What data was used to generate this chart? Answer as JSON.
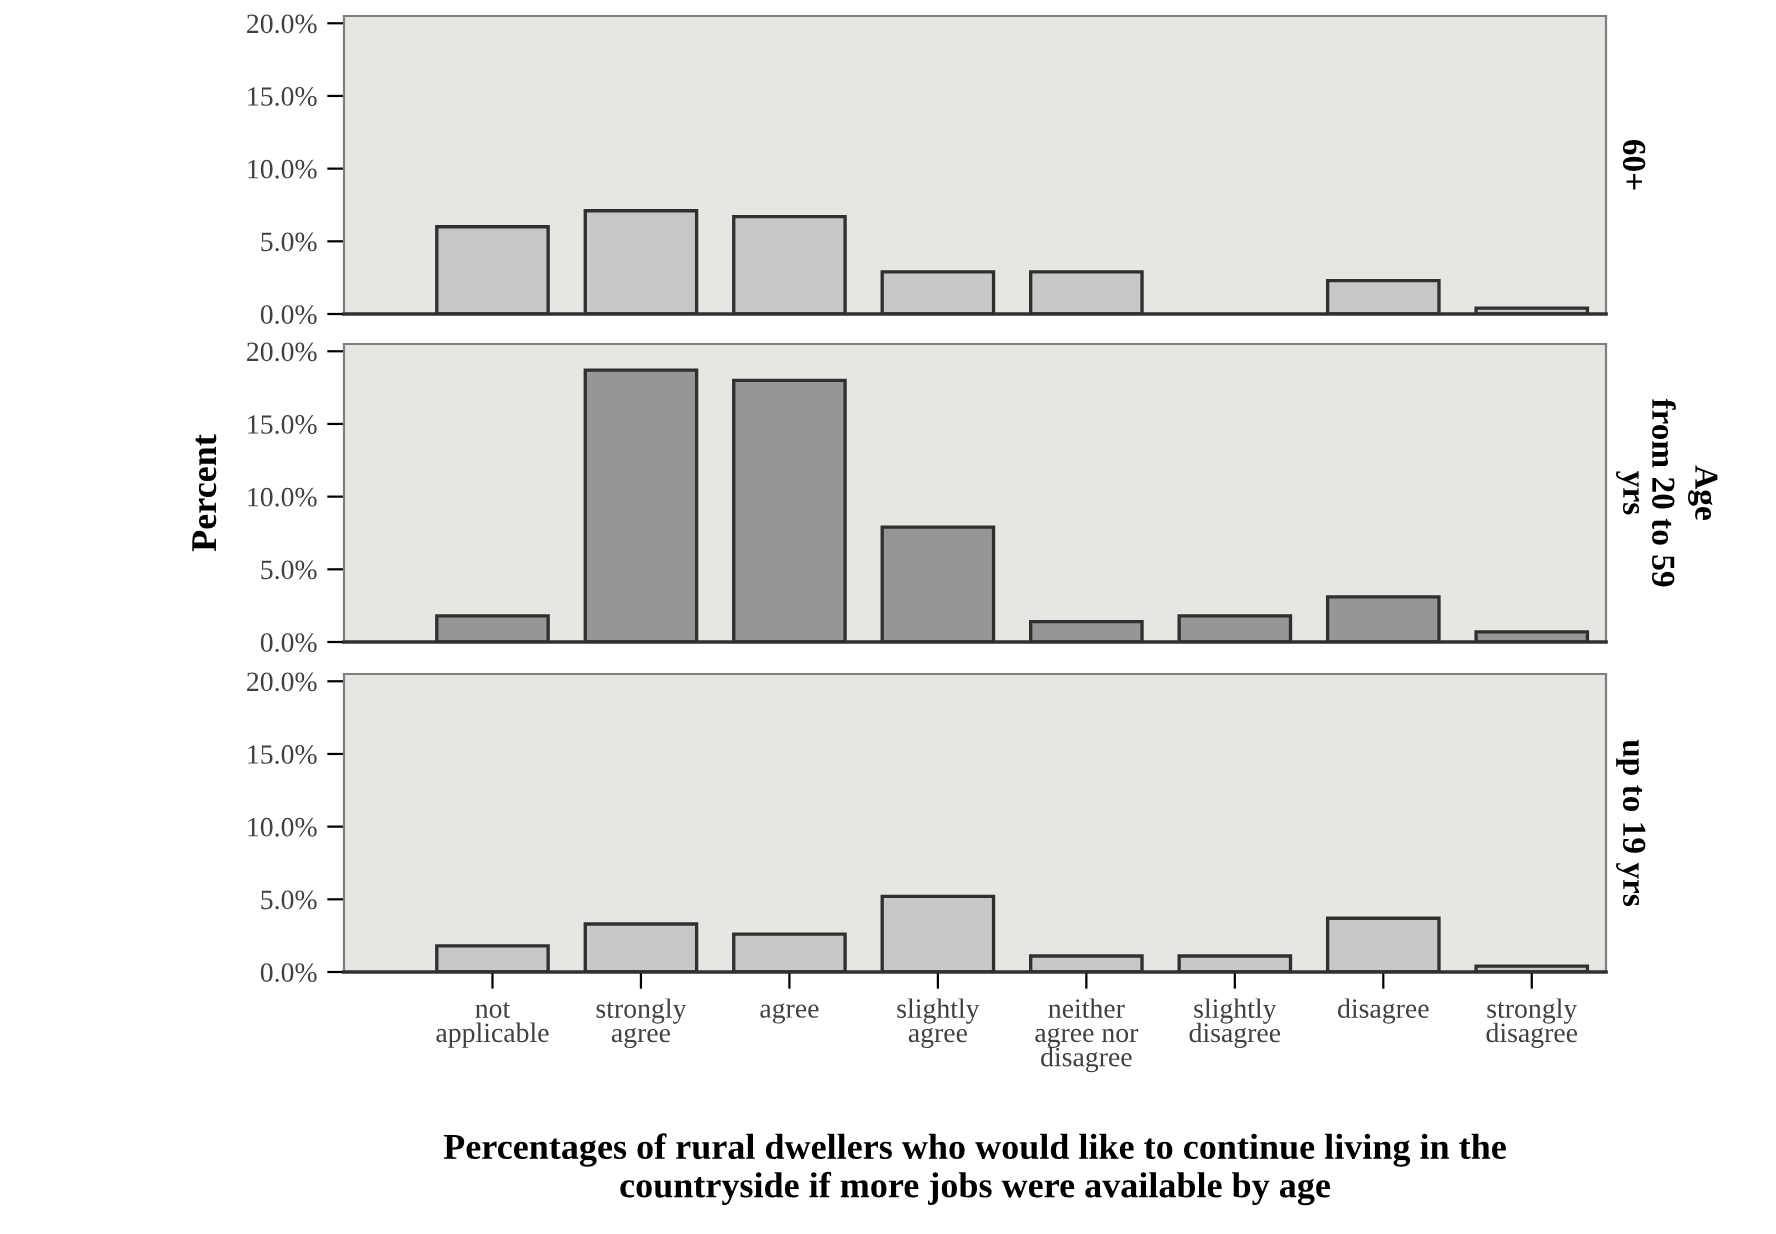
{
  "chart_data": [
    {
      "type": "bar",
      "annotations": [
        "60+"
      ],
      "categories": [
        null,
        null,
        null,
        null,
        null,
        null,
        null,
        null
      ],
      "series": [
        {
          "color": "#c8c8c8",
          "values": [
            6.0,
            7.1,
            6.7,
            2.9,
            2.9,
            null,
            2.3,
            0.4
          ]
        }
      ],
      "ylim": [
        0,
        20.5
      ],
      "yticks": [
        {
          "value": 0,
          "label": "0.0%"
        },
        {
          "value": 5,
          "label": "5.0%"
        },
        {
          "value": 10,
          "label": "10.0%"
        },
        {
          "value": 15,
          "label": "15.0%"
        },
        {
          "value": 20,
          "label": "20.0%"
        }
      ],
      "tick_labels": "y",
      "grid": false,
      "legend": false
    },
    {
      "type": "bar",
      "ylabel": "Percent",
      "annotations": [
        "Age",
        "from 20 to 59\nyrs"
      ],
      "categories": [
        null,
        null,
        null,
        null,
        null,
        null,
        null,
        null
      ],
      "series": [
        {
          "color": "#969696",
          "values": [
            1.8,
            18.7,
            18.0,
            7.9,
            1.4,
            1.8,
            3.1,
            0.7
          ]
        }
      ],
      "ylim": [
        0,
        20.5
      ],
      "yticks": [
        {
          "value": 0,
          "label": "0.0%"
        },
        {
          "value": 5,
          "label": "5.0%"
        },
        {
          "value": 10,
          "label": "10.0%"
        },
        {
          "value": 15,
          "label": "15.0%"
        },
        {
          "value": 20,
          "label": "20.0%"
        }
      ],
      "tick_labels": "y",
      "grid": false,
      "legend": false
    },
    {
      "type": "bar",
      "annotations": [
        "up to 19 yrs"
      ],
      "xlabel": "Percentages of rural dwellers who would like to continue living in the\ncountryside if more jobs were available by age",
      "categories": [
        "not\napplicable",
        "strongly\nagree",
        "agree",
        "slightly\nagree",
        "neither\nagree nor\ndisagree",
        "slightly\ndisagree",
        "disagree",
        "strongly\ndisagree"
      ],
      "series": [
        {
          "color": "#c8c8c8",
          "values": [
            1.8,
            3.3,
            2.6,
            5.2,
            1.1,
            1.1,
            3.7,
            0.4
          ]
        }
      ],
      "ylim": [
        0,
        20.5
      ],
      "yticks": [
        {
          "value": 0,
          "label": "0.0%"
        },
        {
          "value": 5,
          "label": "5.0%"
        },
        {
          "value": 10,
          "label": "10.0%"
        },
        {
          "value": 15,
          "label": "15.0%"
        },
        {
          "value": 20,
          "label": "20.0%"
        }
      ],
      "grid": false,
      "legend": false
    }
  ]
}
